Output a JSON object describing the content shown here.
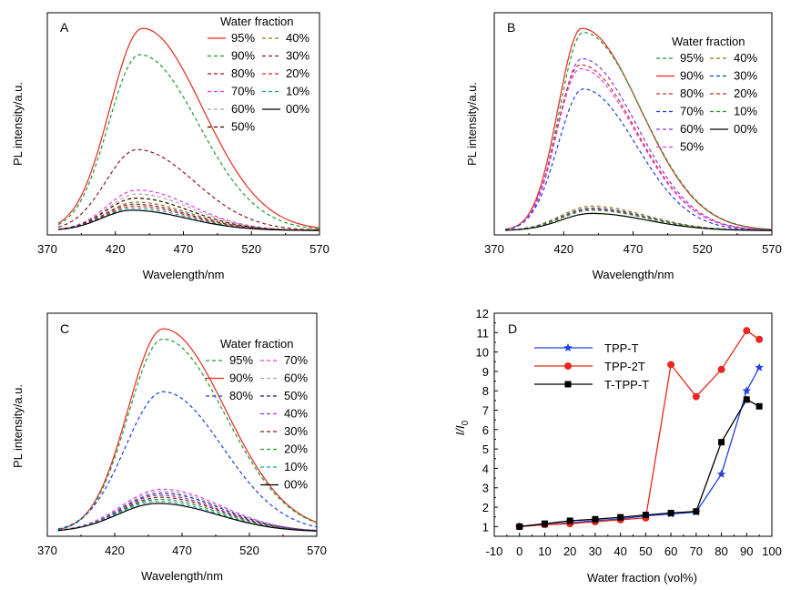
{
  "colors": {
    "c95": "#e8281e",
    "c90": "#1f9b2f",
    "c80": "#8b1a1a",
    "c70": "#e83be8",
    "c60": "#a8a8a8",
    "c50": "#3a0000",
    "c40": "#8a7d12",
    "c30": "#7a1f3d",
    "c20": "#d42a2a",
    "c10": "#18a39a",
    "c00": "#000000",
    "blue": "#1f3fe0",
    "purple": "#9b2bd6",
    "navy": "#1a1f8c"
  },
  "chart_data": [
    {
      "panel": "A",
      "type": "line",
      "xlabel": "Wavelength/nm",
      "ylabel": "PL intensity/a.u.",
      "xlim": [
        370,
        570
      ],
      "xticks": [
        "370",
        "420",
        "470",
        "520",
        "570"
      ],
      "legend_title": "Water fraction",
      "legend": {
        "col1": [
          {
            "label": "95%",
            "color": "c95",
            "dash": false
          },
          {
            "label": "90%",
            "color": "c90",
            "dash": true
          },
          {
            "label": "80%",
            "color": "c80",
            "dash": true
          },
          {
            "label": "70%",
            "color": "c70",
            "dash": true
          },
          {
            "label": "60%",
            "color": "c60",
            "dash": true
          },
          {
            "label": "50%",
            "color": "c50",
            "dash": true
          }
        ],
        "col2": [
          {
            "label": "40%",
            "color": "c40",
            "dash": true
          },
          {
            "label": "30%",
            "color": "c30",
            "dash": true
          },
          {
            "label": "20%",
            "color": "c20",
            "dash": true
          },
          {
            "label": "10%",
            "color": "c10",
            "dash": true
          },
          {
            "label": "00%",
            "color": "c00",
            "dash": false
          }
        ]
      },
      "series": [
        {
          "name": "95%",
          "color": "c95",
          "dash": false,
          "peak": 100,
          "center": 440,
          "wl": 24,
          "wr": 44
        },
        {
          "name": "90%",
          "color": "c90",
          "dash": true,
          "peak": 87,
          "center": 438,
          "wl": 23,
          "wr": 43
        },
        {
          "name": "80%",
          "color": "c80",
          "dash": true,
          "peak": 40,
          "center": 436,
          "wl": 23,
          "wr": 42
        },
        {
          "name": "70%",
          "color": "c70",
          "dash": true,
          "peak": 20,
          "center": 436,
          "wl": 22,
          "wr": 40
        },
        {
          "name": "60%",
          "color": "c60",
          "dash": true,
          "peak": 18,
          "center": 436,
          "wl": 22,
          "wr": 40
        },
        {
          "name": "50%",
          "color": "c50",
          "dash": true,
          "peak": 16,
          "center": 435,
          "wl": 22,
          "wr": 40
        },
        {
          "name": "40%",
          "color": "c40",
          "dash": true,
          "peak": 14,
          "center": 435,
          "wl": 22,
          "wr": 40
        },
        {
          "name": "30%",
          "color": "c30",
          "dash": true,
          "peak": 13,
          "center": 434,
          "wl": 22,
          "wr": 40
        },
        {
          "name": "20%",
          "color": "c20",
          "dash": true,
          "peak": 12,
          "center": 434,
          "wl": 22,
          "wr": 40
        },
        {
          "name": "10%",
          "color": "c10",
          "dash": true,
          "peak": 11,
          "center": 433,
          "wl": 22,
          "wr": 40
        },
        {
          "name": "00%",
          "color": "c00",
          "dash": false,
          "peak": 10,
          "center": 432,
          "wl": 22,
          "wr": 40
        }
      ]
    },
    {
      "panel": "B",
      "type": "line",
      "xlabel": "Wavelength/nm",
      "ylabel": "PL intensity/a.u.",
      "xlim": [
        370,
        570
      ],
      "xticks": [
        "370",
        "420",
        "470",
        "520",
        "570"
      ],
      "legend_title": "Water fraction",
      "legend": {
        "col1": [
          {
            "label": "95%",
            "color": "c90",
            "dash": true
          },
          {
            "label": "90%",
            "color": "c95",
            "dash": false
          },
          {
            "label": "80%",
            "color": "c20",
            "dash": true
          },
          {
            "label": "70%",
            "color": "blue",
            "dash": true
          },
          {
            "label": "60%",
            "color": "purple",
            "dash": true
          },
          {
            "label": "50%",
            "color": "c70",
            "dash": true
          }
        ],
        "col2": [
          {
            "label": "40%",
            "color": "c40",
            "dash": true
          },
          {
            "label": "30%",
            "color": "blue",
            "dash": true
          },
          {
            "label": "20%",
            "color": "c20",
            "dash": true
          },
          {
            "label": "10%",
            "color": "c90",
            "dash": true
          },
          {
            "label": "00%",
            "color": "c00",
            "dash": false
          }
        ]
      },
      "series": [
        {
          "name": "90%",
          "color": "c95",
          "dash": false,
          "peak": 100,
          "center": 433,
          "wl": 17,
          "wr": 42
        },
        {
          "name": "95%",
          "color": "c90",
          "dash": true,
          "peak": 98,
          "center": 434,
          "wl": 17,
          "wr": 42
        },
        {
          "name": "60%",
          "color": "purple",
          "dash": true,
          "peak": 85,
          "center": 433,
          "wl": 17,
          "wr": 40
        },
        {
          "name": "80%",
          "color": "c20",
          "dash": true,
          "peak": 82,
          "center": 432,
          "wl": 17,
          "wr": 40
        },
        {
          "name": "50%",
          "color": "c70",
          "dash": true,
          "peak": 80,
          "center": 432,
          "wl": 17,
          "wr": 40
        },
        {
          "name": "70%",
          "color": "blue",
          "dash": true,
          "peak": 70,
          "center": 434,
          "wl": 18,
          "wr": 38
        },
        {
          "name": "40%",
          "color": "c40",
          "dash": true,
          "peak": 12,
          "center": 440,
          "wl": 22,
          "wr": 40
        },
        {
          "name": "30%",
          "color": "blue",
          "dash": true,
          "peak": 11,
          "center": 440,
          "wl": 22,
          "wr": 40
        },
        {
          "name": "20%",
          "color": "c20",
          "dash": true,
          "peak": 10.5,
          "center": 440,
          "wl": 22,
          "wr": 40
        },
        {
          "name": "10%",
          "color": "c90",
          "dash": true,
          "peak": 10,
          "center": 440,
          "wl": 22,
          "wr": 40
        },
        {
          "name": "00%",
          "color": "c00",
          "dash": false,
          "peak": 8.5,
          "center": 440,
          "wl": 22,
          "wr": 40
        }
      ]
    },
    {
      "panel": "C",
      "type": "line",
      "xlabel": "Wavelength/nm",
      "ylabel": "PL intensity/a.u.",
      "xlim": [
        370,
        570
      ],
      "xticks": [
        "370",
        "420",
        "470",
        "520",
        "570"
      ],
      "legend_title": "Water fraction",
      "legend": {
        "col1": [
          {
            "label": "95%",
            "color": "c90",
            "dash": true
          },
          {
            "label": "90%",
            "color": "c95",
            "dash": false
          },
          {
            "label": "80%",
            "color": "blue",
            "dash": true
          }
        ],
        "col2": [
          {
            "label": "70%",
            "color": "c70",
            "dash": true
          },
          {
            "label": "60%",
            "color": "c60",
            "dash": true
          },
          {
            "label": "50%",
            "color": "navy",
            "dash": true
          },
          {
            "label": "40%",
            "color": "purple",
            "dash": true
          },
          {
            "label": "30%",
            "color": "c80",
            "dash": true
          },
          {
            "label": "20%",
            "color": "c90",
            "dash": true
          },
          {
            "label": "10%",
            "color": "c10",
            "dash": true
          },
          {
            "label": "00%",
            "color": "c00",
            "dash": false
          }
        ]
      },
      "series": [
        {
          "name": "90%",
          "color": "c95",
          "dash": false,
          "peak": 100,
          "center": 456,
          "wl": 26,
          "wr": 46
        },
        {
          "name": "95%",
          "color": "c90",
          "dash": true,
          "peak": 95,
          "center": 456,
          "wl": 26,
          "wr": 46
        },
        {
          "name": "80%",
          "color": "blue",
          "dash": true,
          "peak": 69,
          "center": 456,
          "wl": 28,
          "wr": 44
        },
        {
          "name": "70%",
          "color": "c70",
          "dash": true,
          "peak": 21,
          "center": 455,
          "wl": 30,
          "wr": 44
        },
        {
          "name": "60%",
          "color": "c60",
          "dash": true,
          "peak": 20,
          "center": 455,
          "wl": 30,
          "wr": 44
        },
        {
          "name": "50%",
          "color": "navy",
          "dash": true,
          "peak": 19,
          "center": 455,
          "wl": 30,
          "wr": 44
        },
        {
          "name": "40%",
          "color": "purple",
          "dash": true,
          "peak": 18,
          "center": 454,
          "wl": 30,
          "wr": 44
        },
        {
          "name": "30%",
          "color": "c80",
          "dash": true,
          "peak": 17,
          "center": 454,
          "wl": 30,
          "wr": 44
        },
        {
          "name": "20%",
          "color": "c90",
          "dash": true,
          "peak": 16,
          "center": 453,
          "wl": 30,
          "wr": 44
        },
        {
          "name": "10%",
          "color": "c10",
          "dash": true,
          "peak": 15,
          "center": 452,
          "wl": 30,
          "wr": 44
        },
        {
          "name": "00%",
          "color": "c00",
          "dash": false,
          "peak": 14,
          "center": 452,
          "wl": 30,
          "wr": 44
        }
      ]
    },
    {
      "panel": "D",
      "type": "line",
      "xlabel": "Water fraction (vol%)",
      "ylabel": "I/I0",
      "ylabel_main": "I/I",
      "ylabel_sub": "0",
      "xlim": [
        -10,
        100
      ],
      "ylim": [
        0.5,
        12
      ],
      "xticks": [
        -10,
        0,
        10,
        20,
        30,
        40,
        50,
        60,
        70,
        80,
        90,
        100
      ],
      "yticks": [
        1,
        2,
        3,
        4,
        5,
        6,
        7,
        8,
        9,
        10,
        11,
        12
      ],
      "series": [
        {
          "name": "TPP-T",
          "color": "blue",
          "marker": "star",
          "x": [
            0,
            10,
            20,
            30,
            40,
            50,
            60,
            70,
            80,
            90,
            95
          ],
          "y": [
            1.0,
            1.1,
            1.2,
            1.3,
            1.4,
            1.55,
            1.65,
            1.75,
            3.7,
            8.0,
            9.2
          ]
        },
        {
          "name": "TPP-2T",
          "color": "c95",
          "marker": "circle",
          "x": [
            0,
            10,
            20,
            30,
            40,
            50,
            60,
            70,
            80,
            90,
            95
          ],
          "y": [
            1.0,
            1.1,
            1.15,
            1.25,
            1.35,
            1.45,
            9.35,
            7.7,
            9.1,
            11.1,
            10.65
          ]
        },
        {
          "name": "T-TPP-T",
          "color": "c00",
          "marker": "square",
          "x": [
            0,
            10,
            20,
            30,
            40,
            50,
            60,
            70,
            80,
            90,
            95
          ],
          "y": [
            1.0,
            1.15,
            1.3,
            1.38,
            1.48,
            1.6,
            1.7,
            1.78,
            5.35,
            7.55,
            7.2
          ]
        }
      ]
    }
  ]
}
